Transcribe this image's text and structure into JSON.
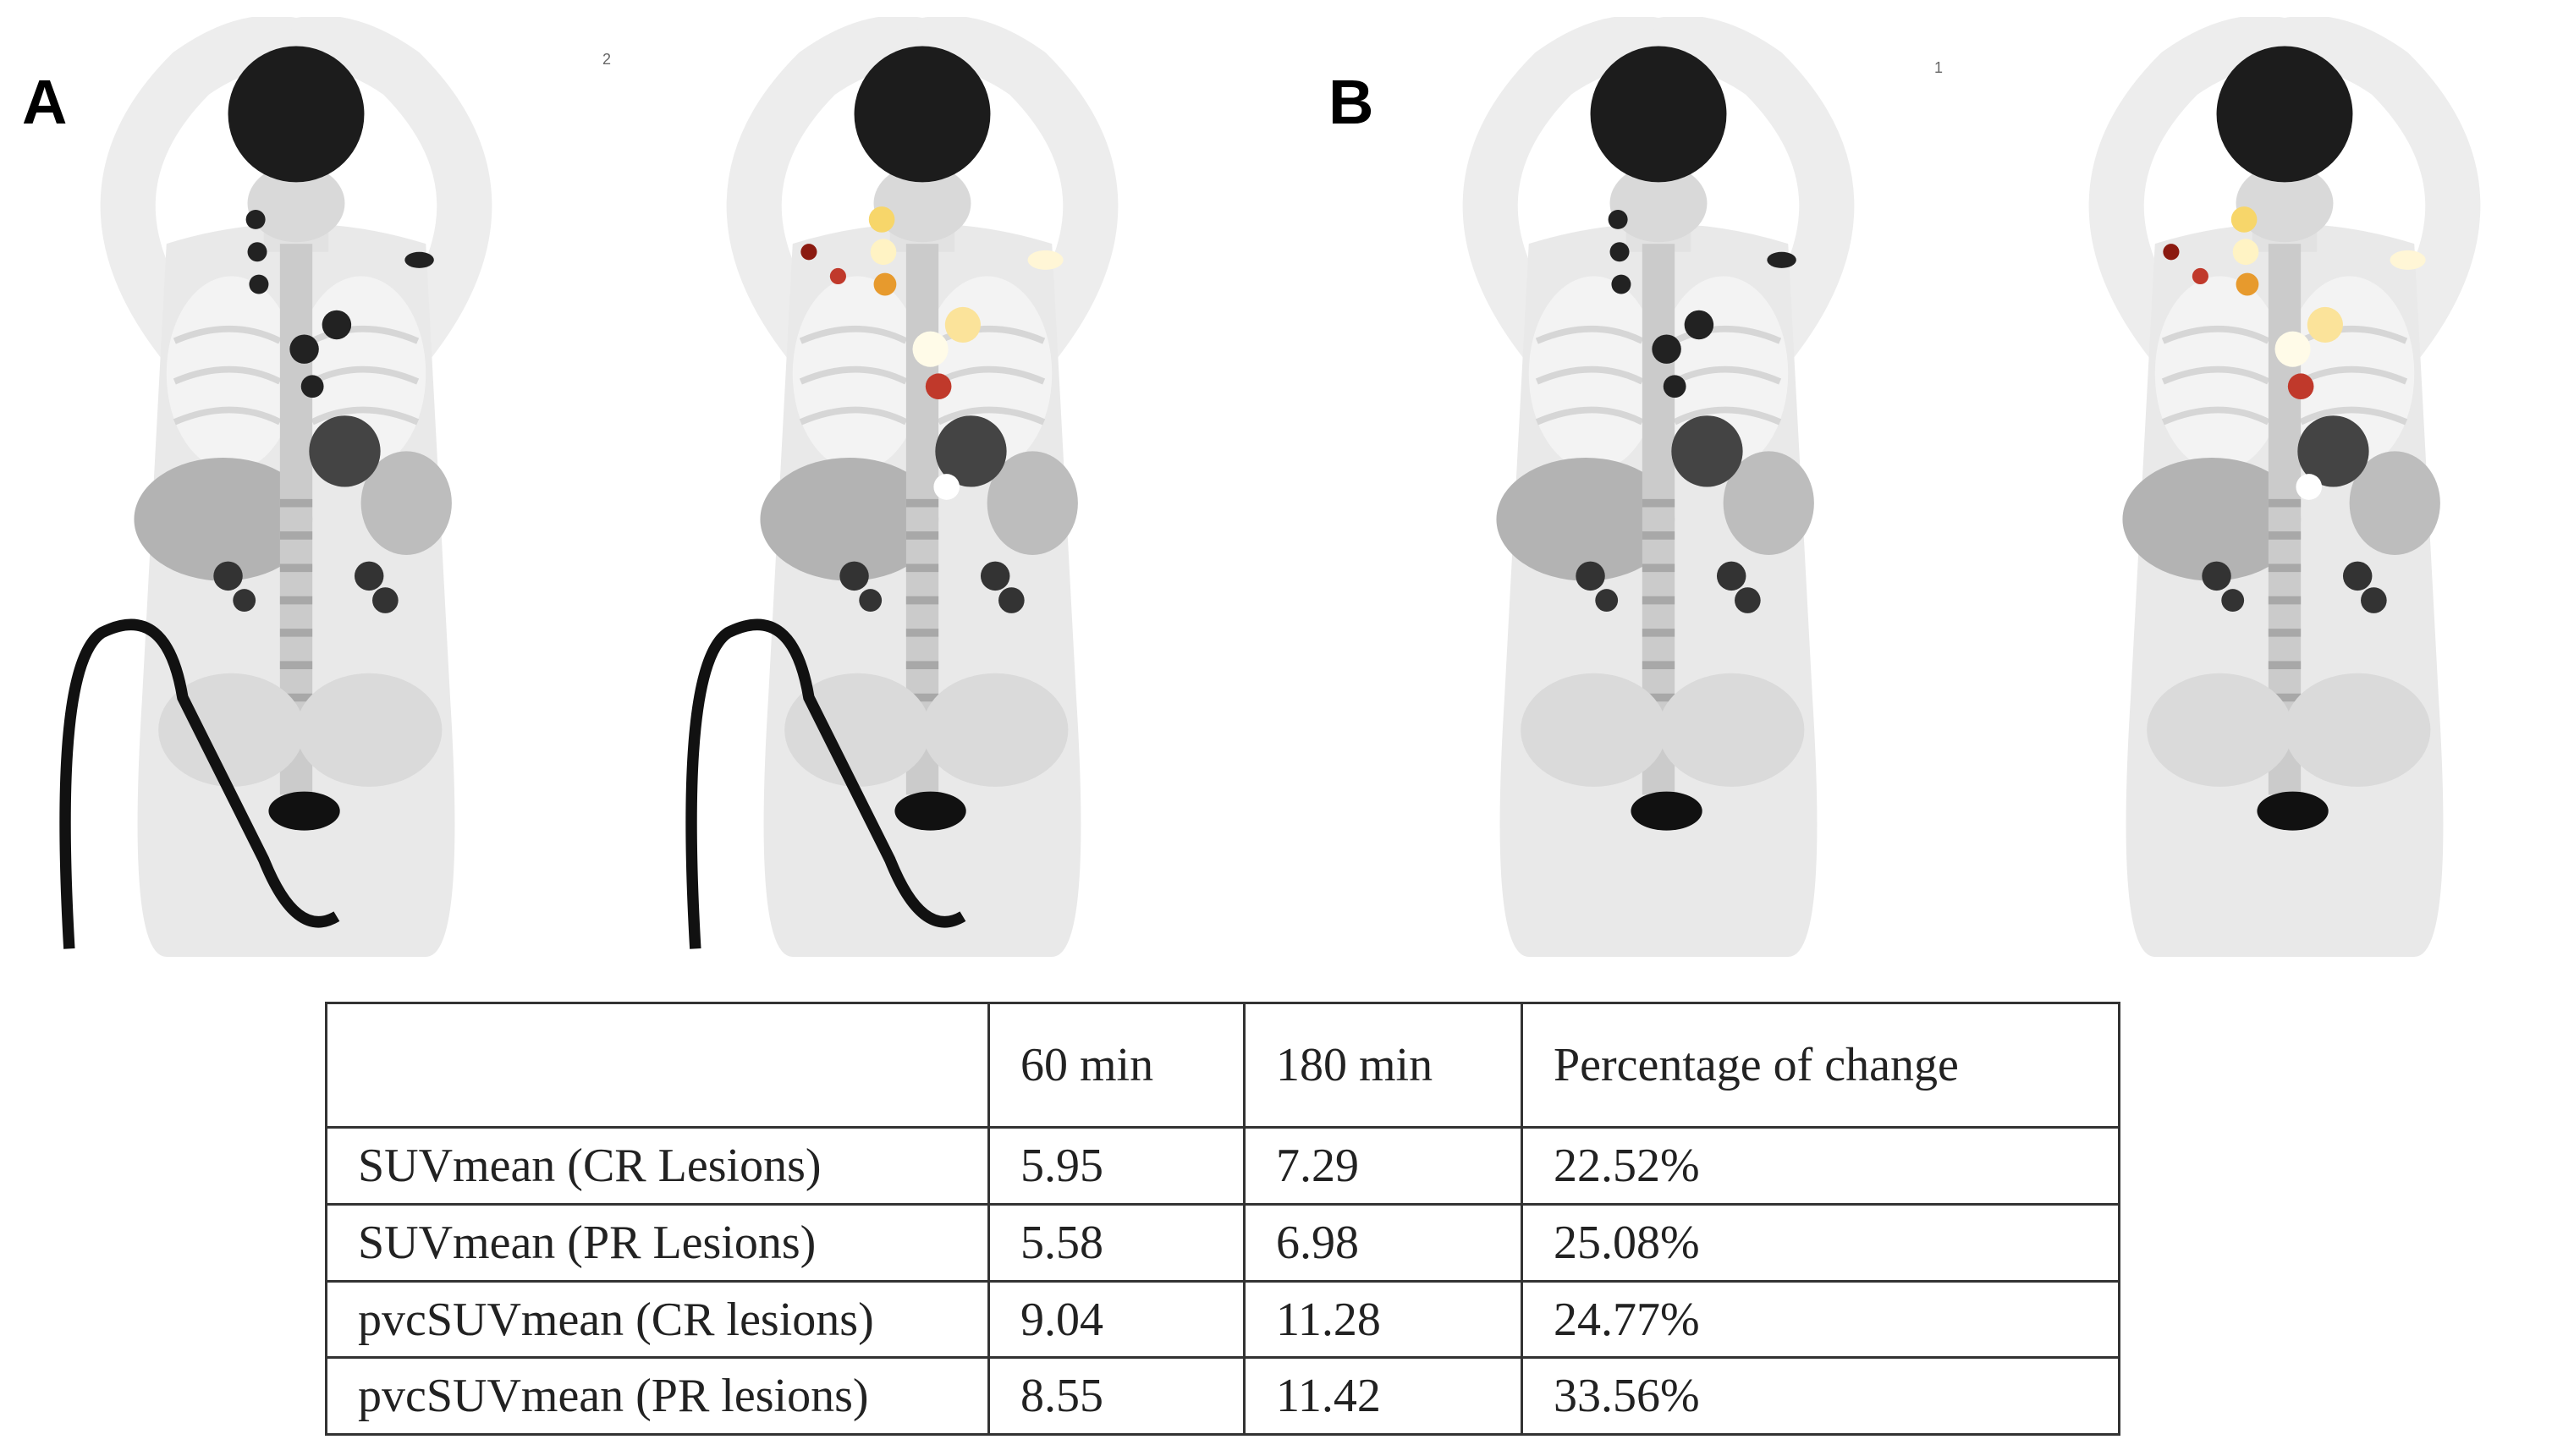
{
  "panels": [
    {
      "label": "A",
      "marker": "2"
    },
    {
      "label": "B",
      "marker": "1"
    }
  ],
  "table": {
    "header": [
      "60 min",
      "180 min",
      "Percentage of change"
    ],
    "rows": [
      [
        "SUVmean (CR Lesions)",
        "5.95",
        "7.29",
        "22.52%"
      ],
      [
        "SUVmean (PR Lesions)",
        "5.58",
        "6.98",
        "25.08%"
      ],
      [
        "pvcSUVmean (CR lesions)",
        "9.04",
        "11.28",
        "24.77%"
      ],
      [
        "pvcSUVmean (PR lesions)",
        "8.55",
        "11.42",
        "33.56%"
      ]
    ]
  }
}
